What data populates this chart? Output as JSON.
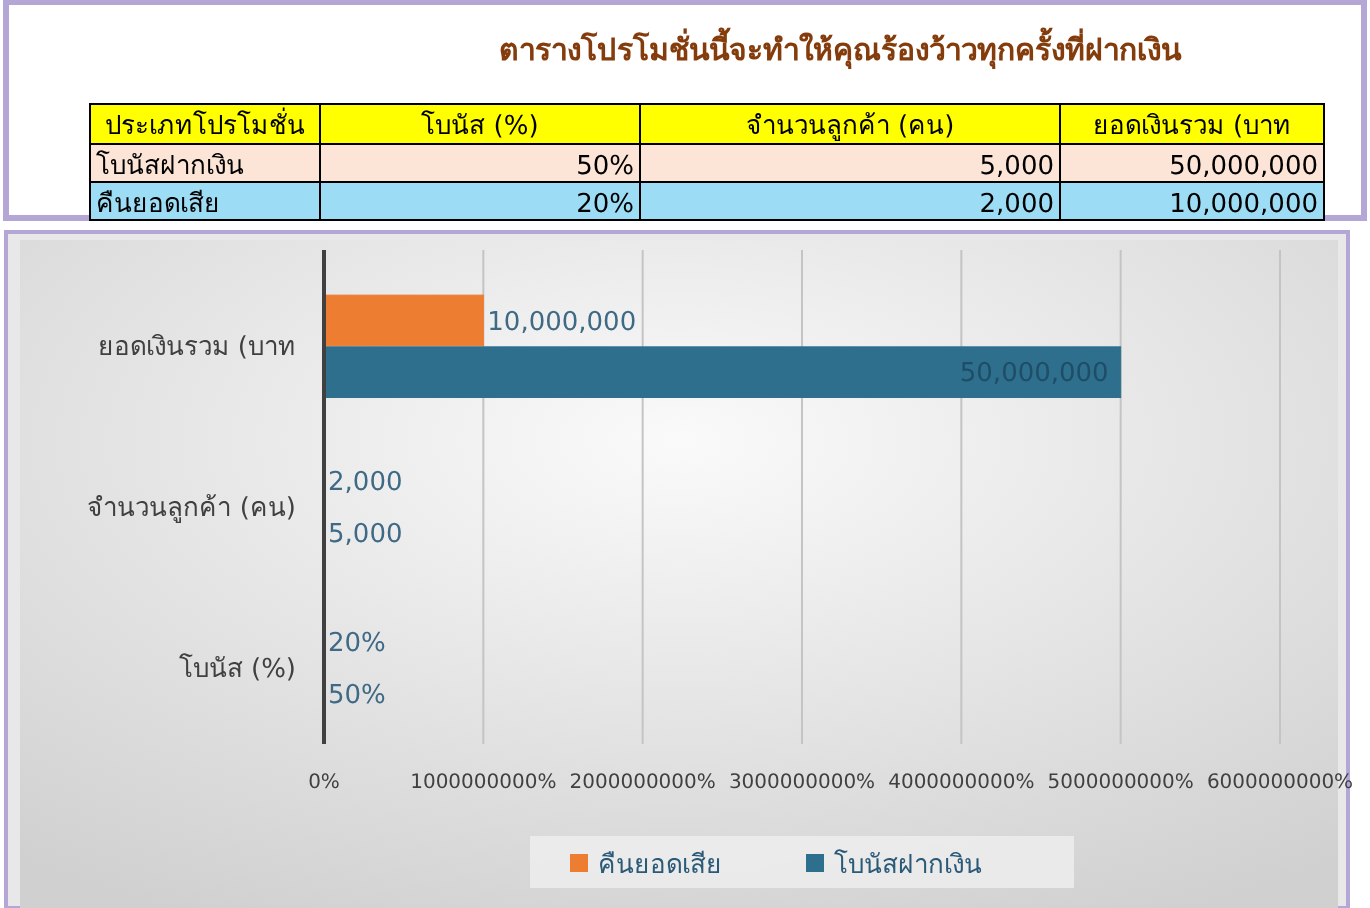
{
  "chart_data": {
    "type": "bar",
    "orientation": "horizontal",
    "title": "ตารางโปรโมชั่นนี้จะทำให้คุณร้องว้าวทุกครั้งที่ฝากเงิน",
    "annotations": [
      "ประเภทโปรโมชั่น"
    ],
    "categories": [
      "ยอดเงินรวม (บาท",
      "จำนวนลูกค้า (คน)",
      "โบนัส (%)"
    ],
    "series": [
      {
        "name": "คืนยอดเสีย",
        "color": "#ed7d31",
        "values": [
          10000000,
          2000,
          0.2
        ],
        "value_labels": [
          "10,000,000",
          "2,000",
          "20%"
        ]
      },
      {
        "name": "โบนัสฝากเงิน",
        "color": "#2e6f8e",
        "values": [
          50000000,
          5000,
          0.5
        ],
        "value_labels": [
          "50,000,000",
          "5,000",
          "50%"
        ]
      }
    ],
    "xlim": [
      0,
      60000000
    ],
    "xticks": [
      {
        "value": 0,
        "label": "0%"
      },
      {
        "value": 10000000,
        "label": "1000000000%"
      },
      {
        "value": 20000000,
        "label": "2000000000%"
      },
      {
        "value": 30000000,
        "label": "3000000000%"
      },
      {
        "value": 40000000,
        "label": "4000000000%"
      },
      {
        "value": 50000000,
        "label": "5000000000%"
      },
      {
        "value": 60000000,
        "label": "6000000000%"
      }
    ],
    "grid": "x",
    "legend": "bottom"
  }
}
